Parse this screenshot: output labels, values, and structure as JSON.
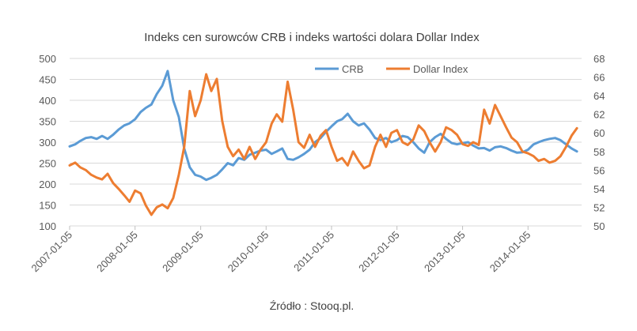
{
  "chart_data": {
    "type": "line",
    "title": "Indeks cen surowców CRB i indeks wartości dolara Dollar Index",
    "source": "Źródło : Stooq.pl.",
    "legend_position": "top-right",
    "grid": true,
    "x_ticks": [
      "2007-01-05",
      "2008-01-05",
      "2009-01-05",
      "2010-01-05",
      "2011-01-05",
      "2012-01-05",
      "2013-01-05",
      "2014-01-05"
    ],
    "y_left": {
      "ylim": [
        100,
        500
      ],
      "ticks": [
        "100",
        "150",
        "200",
        "250",
        "300",
        "350",
        "400",
        "450",
        "500"
      ]
    },
    "y_right": {
      "ylim": [
        50,
        68
      ],
      "ticks": [
        "50",
        "52",
        "54",
        "56",
        "58",
        "60",
        "62",
        "64",
        "66",
        "68"
      ]
    },
    "series": [
      {
        "name": "CRB",
        "color": "#5b9bd5",
        "axis": "left",
        "points": [
          [
            "2007-01-05",
            290
          ],
          [
            "2007-02-05",
            295
          ],
          [
            "2007-03-05",
            303
          ],
          [
            "2007-04-05",
            310
          ],
          [
            "2007-05-05",
            312
          ],
          [
            "2007-06-05",
            308
          ],
          [
            "2007-07-05",
            315
          ],
          [
            "2007-08-05",
            308
          ],
          [
            "2007-09-05",
            318
          ],
          [
            "2007-10-05",
            330
          ],
          [
            "2007-11-05",
            340
          ],
          [
            "2007-12-05",
            345
          ],
          [
            "2008-01-05",
            355
          ],
          [
            "2008-02-05",
            372
          ],
          [
            "2008-03-05",
            382
          ],
          [
            "2008-04-05",
            390
          ],
          [
            "2008-05-05",
            415
          ],
          [
            "2008-06-05",
            435
          ],
          [
            "2008-07-05",
            470
          ],
          [
            "2008-08-05",
            400
          ],
          [
            "2008-09-05",
            360
          ],
          [
            "2008-10-05",
            285
          ],
          [
            "2008-11-05",
            240
          ],
          [
            "2008-12-05",
            222
          ],
          [
            "2009-01-05",
            218
          ],
          [
            "2009-02-05",
            210
          ],
          [
            "2009-03-05",
            215
          ],
          [
            "2009-04-05",
            222
          ],
          [
            "2009-05-05",
            235
          ],
          [
            "2009-06-05",
            250
          ],
          [
            "2009-07-05",
            245
          ],
          [
            "2009-08-05",
            262
          ],
          [
            "2009-09-05",
            258
          ],
          [
            "2009-10-05",
            270
          ],
          [
            "2009-11-05",
            275
          ],
          [
            "2009-12-05",
            280
          ],
          [
            "2010-01-05",
            282
          ],
          [
            "2010-02-05",
            272
          ],
          [
            "2010-03-05",
            278
          ],
          [
            "2010-04-05",
            285
          ],
          [
            "2010-05-05",
            260
          ],
          [
            "2010-06-05",
            258
          ],
          [
            "2010-07-05",
            264
          ],
          [
            "2010-08-05",
            272
          ],
          [
            "2010-09-05",
            282
          ],
          [
            "2010-10-05",
            300
          ],
          [
            "2010-11-05",
            310
          ],
          [
            "2010-12-05",
            325
          ],
          [
            "2011-01-05",
            338
          ],
          [
            "2011-02-05",
            350
          ],
          [
            "2011-03-05",
            355
          ],
          [
            "2011-04-05",
            368
          ],
          [
            "2011-05-05",
            350
          ],
          [
            "2011-06-05",
            340
          ],
          [
            "2011-07-05",
            345
          ],
          [
            "2011-08-05",
            330
          ],
          [
            "2011-09-05",
            310
          ],
          [
            "2011-10-05",
            305
          ],
          [
            "2011-11-05",
            310
          ],
          [
            "2011-12-05",
            300
          ],
          [
            "2012-01-05",
            305
          ],
          [
            "2012-02-05",
            315
          ],
          [
            "2012-03-05",
            312
          ],
          [
            "2012-04-05",
            300
          ],
          [
            "2012-05-05",
            285
          ],
          [
            "2012-06-05",
            275
          ],
          [
            "2012-07-05",
            300
          ],
          [
            "2012-08-05",
            312
          ],
          [
            "2012-09-05",
            320
          ],
          [
            "2012-10-05",
            308
          ],
          [
            "2012-11-05",
            298
          ],
          [
            "2012-12-05",
            295
          ],
          [
            "2013-01-05",
            298
          ],
          [
            "2013-02-05",
            300
          ],
          [
            "2013-03-05",
            292
          ],
          [
            "2013-04-05",
            285
          ],
          [
            "2013-05-05",
            286
          ],
          [
            "2013-06-05",
            280
          ],
          [
            "2013-07-05",
            288
          ],
          [
            "2013-08-05",
            290
          ],
          [
            "2013-09-05",
            286
          ],
          [
            "2013-10-05",
            280
          ],
          [
            "2013-11-05",
            275
          ],
          [
            "2013-12-05",
            276
          ],
          [
            "2014-01-05",
            282
          ],
          [
            "2014-02-05",
            295
          ],
          [
            "2014-03-05",
            300
          ],
          [
            "2014-04-05",
            305
          ],
          [
            "2014-05-05",
            308
          ],
          [
            "2014-06-05",
            310
          ],
          [
            "2014-07-05",
            305
          ],
          [
            "2014-08-05",
            295
          ],
          [
            "2014-09-05",
            285
          ],
          [
            "2014-10-05",
            278
          ]
        ]
      },
      {
        "name": "Dollar Index",
        "color": "#ed7d31",
        "axis": "right",
        "points": [
          [
            "2007-01-05",
            56.5
          ],
          [
            "2007-02-05",
            56.8
          ],
          [
            "2007-03-05",
            56.3
          ],
          [
            "2007-04-05",
            56.0
          ],
          [
            "2007-05-05",
            55.5
          ],
          [
            "2007-06-05",
            55.2
          ],
          [
            "2007-07-05",
            55.0
          ],
          [
            "2007-08-05",
            55.6
          ],
          [
            "2007-09-05",
            54.6
          ],
          [
            "2007-10-05",
            54.0
          ],
          [
            "2007-11-05",
            53.3
          ],
          [
            "2007-12-05",
            52.6
          ],
          [
            "2008-01-05",
            53.8
          ],
          [
            "2008-02-05",
            53.5
          ],
          [
            "2008-03-05",
            52.2
          ],
          [
            "2008-04-05",
            51.2
          ],
          [
            "2008-05-05",
            52.0
          ],
          [
            "2008-06-05",
            52.3
          ],
          [
            "2008-07-05",
            51.9
          ],
          [
            "2008-08-05",
            53.0
          ],
          [
            "2008-09-05",
            55.5
          ],
          [
            "2008-10-05",
            58.5
          ],
          [
            "2008-11-05",
            64.5
          ],
          [
            "2008-12-05",
            61.8
          ],
          [
            "2009-01-05",
            63.5
          ],
          [
            "2009-02-05",
            66.3
          ],
          [
            "2009-03-05",
            64.5
          ],
          [
            "2009-04-05",
            65.8
          ],
          [
            "2009-05-05",
            61.3
          ],
          [
            "2009-06-05",
            58.5
          ],
          [
            "2009-07-05",
            57.5
          ],
          [
            "2009-08-05",
            58.2
          ],
          [
            "2009-09-05",
            57.2
          ],
          [
            "2009-10-05",
            58.5
          ],
          [
            "2009-11-05",
            57.2
          ],
          [
            "2009-12-05",
            58.2
          ],
          [
            "2010-01-05",
            59.0
          ],
          [
            "2010-02-05",
            61.0
          ],
          [
            "2010-03-05",
            62.0
          ],
          [
            "2010-04-05",
            61.2
          ],
          [
            "2010-05-05",
            65.5
          ],
          [
            "2010-06-05",
            62.5
          ],
          [
            "2010-07-05",
            59.0
          ],
          [
            "2010-08-05",
            58.4
          ],
          [
            "2010-09-05",
            59.8
          ],
          [
            "2010-10-05",
            58.5
          ],
          [
            "2010-11-05",
            59.7
          ],
          [
            "2010-12-05",
            60.3
          ],
          [
            "2011-01-05",
            58.5
          ],
          [
            "2011-02-05",
            57.0
          ],
          [
            "2011-03-05",
            57.3
          ],
          [
            "2011-04-05",
            56.5
          ],
          [
            "2011-05-05",
            58.0
          ],
          [
            "2011-06-05",
            57.0
          ],
          [
            "2011-07-05",
            56.2
          ],
          [
            "2011-08-05",
            56.5
          ],
          [
            "2011-09-05",
            58.5
          ],
          [
            "2011-10-05",
            59.8
          ],
          [
            "2011-11-05",
            58.5
          ],
          [
            "2011-12-05",
            60.0
          ],
          [
            "2012-01-05",
            60.3
          ],
          [
            "2012-02-05",
            59.0
          ],
          [
            "2012-03-05",
            58.7
          ],
          [
            "2012-04-05",
            59.3
          ],
          [
            "2012-05-05",
            60.8
          ],
          [
            "2012-06-05",
            60.2
          ],
          [
            "2012-07-05",
            59.0
          ],
          [
            "2012-08-05",
            58.0
          ],
          [
            "2012-09-05",
            59.0
          ],
          [
            "2012-10-05",
            60.6
          ],
          [
            "2012-11-05",
            60.3
          ],
          [
            "2012-12-05",
            59.8
          ],
          [
            "2013-01-05",
            58.8
          ],
          [
            "2013-02-05",
            58.6
          ],
          [
            "2013-03-05",
            59.0
          ],
          [
            "2013-04-05",
            58.7
          ],
          [
            "2013-05-05",
            62.5
          ],
          [
            "2013-06-05",
            61.0
          ],
          [
            "2013-07-05",
            63.0
          ],
          [
            "2013-08-05",
            61.8
          ],
          [
            "2013-09-05",
            60.6
          ],
          [
            "2013-10-05",
            59.5
          ],
          [
            "2013-11-05",
            59.0
          ],
          [
            "2013-12-05",
            58.0
          ],
          [
            "2014-01-05",
            57.8
          ],
          [
            "2014-02-05",
            57.5
          ],
          [
            "2014-03-05",
            57.0
          ],
          [
            "2014-04-05",
            57.2
          ],
          [
            "2014-05-05",
            56.8
          ],
          [
            "2014-06-05",
            57.0
          ],
          [
            "2014-07-05",
            57.5
          ],
          [
            "2014-08-05",
            58.5
          ],
          [
            "2014-09-05",
            59.7
          ],
          [
            "2014-10-05",
            60.5
          ]
        ]
      }
    ]
  }
}
